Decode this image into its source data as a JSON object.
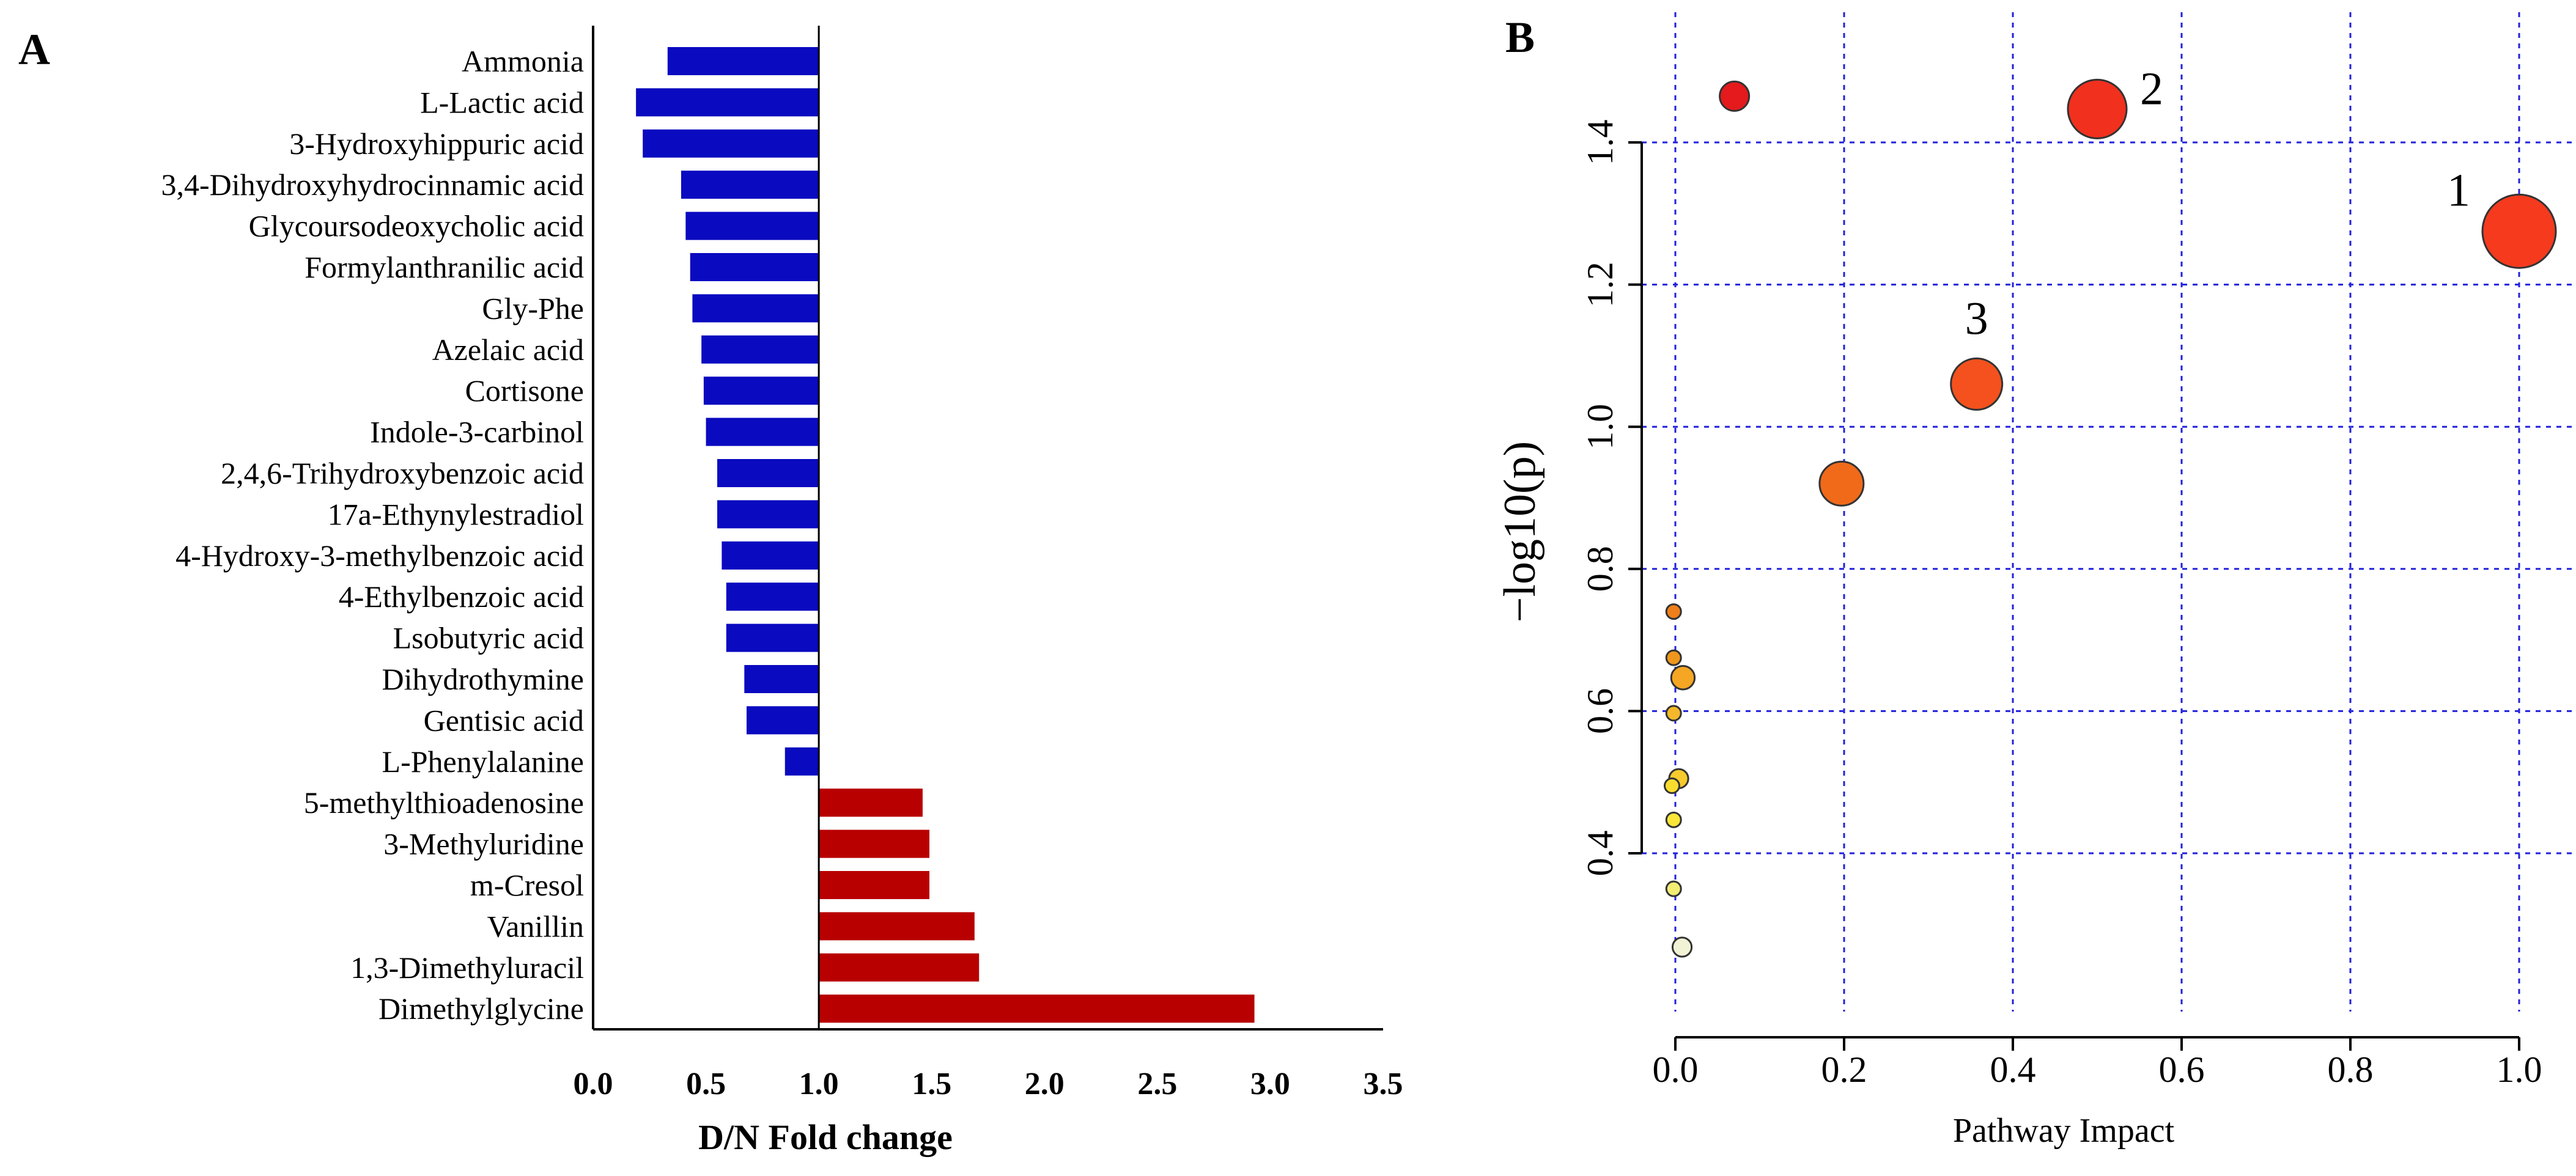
{
  "chart_data": [
    {
      "panel": "A",
      "type": "bar",
      "orientation": "horizontal",
      "xlabel": "D/N Fold change",
      "ylabel": "",
      "xlim": [
        0,
        3.5
      ],
      "xticks": [
        "0.0",
        "0.5",
        "1.0",
        "1.5",
        "2.0",
        "2.5",
        "3.0",
        "3.5"
      ],
      "baseline": 1.0,
      "colors": {
        "down": "#0a0ac0",
        "up": "#b80000"
      },
      "categories": [
        "Ammonia",
        "L-Lactic acid",
        "3-Hydroxyhippuric acid",
        "3,4-Dihydroxyhydrocinnamic acid",
        "Glycoursodeoxycholic acid",
        "Formylanthranilic acid",
        "Gly-Phe",
        "Azelaic acid",
        "Cortisone",
        "Indole-3-carbinol",
        "2,4,6-Trihydroxybenzoic acid",
        "17a-Ethynylestradiol",
        "4-Hydroxy-3-methylbenzoic acid",
        "4-Ethylbenzoic acid",
        "Lsobutyric acid",
        "Dihydrothymine",
        "Gentisic acid",
        "L-Phenylalanine",
        "5-methylthioadenosine",
        "3-Methyluridine",
        "m-Cresol",
        "Vanillin",
        "1,3-Dimethyluracil",
        "Dimethylglycine"
      ],
      "values": [
        0.33,
        0.19,
        0.22,
        0.39,
        0.41,
        0.43,
        0.44,
        0.48,
        0.49,
        0.5,
        0.55,
        0.55,
        0.57,
        0.59,
        0.59,
        0.67,
        0.68,
        0.85,
        1.46,
        1.49,
        1.49,
        1.69,
        1.71,
        2.93
      ]
    },
    {
      "panel": "B",
      "type": "scatter",
      "xlabel": "Pathway Impact",
      "ylabel": "−log10(p)",
      "xlim": [
        -0.03,
        1.04
      ],
      "ylim": [
        0.2,
        1.52
      ],
      "xticks": [
        "0.0",
        "0.2",
        "0.4",
        "0.6",
        "0.8",
        "1.0"
      ],
      "yticks": [
        "0.4",
        "0.6",
        "0.8",
        "1.0",
        "1.2",
        "1.4"
      ],
      "grid": true,
      "points": [
        {
          "x": 0.07,
          "y": 1.465,
          "color": "#e41a1c",
          "size": 2
        },
        {
          "x": 0.5,
          "y": 1.447,
          "color": "#f2301e",
          "size": 4,
          "label": "2"
        },
        {
          "x": 1.0,
          "y": 1.275,
          "color": "#f53a1e",
          "size": 5,
          "label": "1"
        },
        {
          "x": 0.357,
          "y": 1.06,
          "color": "#f4511e",
          "size": 3.5,
          "label": "3"
        },
        {
          "x": 0.197,
          "y": 0.92,
          "color": "#f06a1a",
          "size": 3
        },
        {
          "x": -0.002,
          "y": 0.74,
          "color": "#ef7f1a",
          "size": 1
        },
        {
          "x": -0.002,
          "y": 0.675,
          "color": "#f0961c",
          "size": 1
        },
        {
          "x": 0.009,
          "y": 0.647,
          "color": "#f5a623",
          "size": 1.6
        },
        {
          "x": -0.002,
          "y": 0.597,
          "color": "#f5b82a",
          "size": 1
        },
        {
          "x": 0.004,
          "y": 0.505,
          "color": "#f7ca2e",
          "size": 1.3
        },
        {
          "x": -0.004,
          "y": 0.495,
          "color": "#f9dd2e",
          "size": 1
        },
        {
          "x": -0.002,
          "y": 0.447,
          "color": "#f9e638",
          "size": 1
        },
        {
          "x": -0.002,
          "y": 0.35,
          "color": "#f3ed74",
          "size": 1
        },
        {
          "x": 0.008,
          "y": 0.268,
          "color": "#f2f2d6",
          "size": 1.3
        }
      ]
    }
  ],
  "panels": {
    "a_letter": "A",
    "b_letter": "B"
  }
}
